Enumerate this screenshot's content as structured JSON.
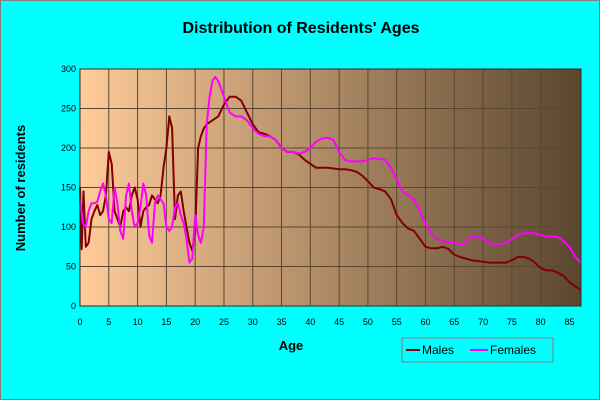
{
  "chart_data": {
    "type": "line",
    "title": "Distribution of Residents' Ages",
    "xlabel": "Age",
    "ylabel": "Number of residents",
    "xlim": [
      0,
      87
    ],
    "ylim": [
      0,
      300
    ],
    "x_ticks": [
      0,
      5,
      10,
      15,
      20,
      25,
      30,
      35,
      40,
      45,
      50,
      55,
      60,
      65,
      70,
      75,
      80,
      85
    ],
    "y_ticks": [
      0,
      50,
      100,
      150,
      200,
      250,
      300
    ],
    "grid": true,
    "legend_position": "bottom-right",
    "colors": {
      "page_background": "#00ffff",
      "plot_gradient_left": "#ffcc99",
      "plot_gradient_right": "#5a4630",
      "grid": "#5a4630"
    },
    "series": [
      {
        "name": "Males",
        "color": "#800000",
        "points": [
          [
            0,
            150
          ],
          [
            0.3,
            72
          ],
          [
            0.6,
            145
          ],
          [
            1,
            75
          ],
          [
            1.5,
            80
          ],
          [
            2,
            110
          ],
          [
            2.5,
            120
          ],
          [
            3,
            128
          ],
          [
            3.5,
            115
          ],
          [
            4,
            120
          ],
          [
            4.5,
            140
          ],
          [
            5,
            195
          ],
          [
            5.5,
            180
          ],
          [
            6,
            120
          ],
          [
            6.5,
            110
          ],
          [
            7,
            100
          ],
          [
            7.5,
            120
          ],
          [
            8,
            125
          ],
          [
            8.5,
            120
          ],
          [
            9,
            140
          ],
          [
            9.5,
            150
          ],
          [
            10,
            135
          ],
          [
            10.5,
            100
          ],
          [
            11,
            120
          ],
          [
            11.5,
            125
          ],
          [
            12,
            128
          ],
          [
            12.5,
            140
          ],
          [
            13,
            135
          ],
          [
            13.5,
            130
          ],
          [
            14,
            140
          ],
          [
            14.5,
            175
          ],
          [
            15,
            200
          ],
          [
            15.5,
            240
          ],
          [
            16,
            225
          ],
          [
            16.5,
            110
          ],
          [
            17,
            140
          ],
          [
            17.5,
            145
          ],
          [
            18,
            120
          ],
          [
            18.5,
            100
          ],
          [
            19,
            80
          ],
          [
            19.5,
            70
          ],
          [
            20,
            95
          ],
          [
            20.5,
            200
          ],
          [
            21,
            215
          ],
          [
            21.5,
            225
          ],
          [
            22,
            230
          ],
          [
            23,
            235
          ],
          [
            24,
            240
          ],
          [
            25,
            255
          ],
          [
            26,
            265
          ],
          [
            27,
            265
          ],
          [
            28,
            260
          ],
          [
            29,
            245
          ],
          [
            30,
            230
          ],
          [
            31,
            220
          ],
          [
            32,
            218
          ],
          [
            33,
            215
          ],
          [
            34,
            210
          ],
          [
            35,
            200
          ],
          [
            36,
            195
          ],
          [
            37,
            195
          ],
          [
            38,
            192
          ],
          [
            39,
            185
          ],
          [
            40,
            180
          ],
          [
            41,
            175
          ],
          [
            42,
            175
          ],
          [
            43,
            175
          ],
          [
            44,
            174
          ],
          [
            45,
            173
          ],
          [
            46,
            173
          ],
          [
            47,
            172
          ],
          [
            48,
            170
          ],
          [
            49,
            165
          ],
          [
            50,
            158
          ],
          [
            51,
            150
          ],
          [
            52,
            148
          ],
          [
            53,
            145
          ],
          [
            54,
            135
          ],
          [
            55,
            115
          ],
          [
            56,
            105
          ],
          [
            57,
            98
          ],
          [
            58,
            95
          ],
          [
            59,
            85
          ],
          [
            60,
            75
          ],
          [
            61,
            73
          ],
          [
            62,
            73
          ],
          [
            63,
            75
          ],
          [
            64,
            72
          ],
          [
            65,
            65
          ],
          [
            66,
            62
          ],
          [
            67,
            60
          ],
          [
            68,
            58
          ],
          [
            69,
            57
          ],
          [
            70,
            56
          ],
          [
            71,
            55
          ],
          [
            72,
            55
          ],
          [
            73,
            55
          ],
          [
            74,
            55
          ],
          [
            75,
            58
          ],
          [
            76,
            62
          ],
          [
            77,
            62
          ],
          [
            78,
            60
          ],
          [
            79,
            55
          ],
          [
            80,
            48
          ],
          [
            81,
            45
          ],
          [
            82,
            45
          ],
          [
            83,
            42
          ],
          [
            84,
            38
          ],
          [
            85,
            30
          ],
          [
            86,
            25
          ],
          [
            87,
            20
          ]
        ]
      },
      {
        "name": "Females",
        "color": "#ff00ff",
        "points": [
          [
            0,
            135
          ],
          [
            0.5,
            105
          ],
          [
            1,
            100
          ],
          [
            1.5,
            120
          ],
          [
            2,
            130
          ],
          [
            2.5,
            130
          ],
          [
            3,
            132
          ],
          [
            3.5,
            145
          ],
          [
            4,
            155
          ],
          [
            4.5,
            140
          ],
          [
            5,
            110
          ],
          [
            5.5,
            105
          ],
          [
            6,
            150
          ],
          [
            6.5,
            130
          ],
          [
            7,
            95
          ],
          [
            7.5,
            85
          ],
          [
            8,
            140
          ],
          [
            8.5,
            155
          ],
          [
            9,
            120
          ],
          [
            9.5,
            100
          ],
          [
            10,
            105
          ],
          [
            10.5,
            125
          ],
          [
            11,
            155
          ],
          [
            11.5,
            140
          ],
          [
            12,
            90
          ],
          [
            12.5,
            80
          ],
          [
            13,
            130
          ],
          [
            13.5,
            140
          ],
          [
            14,
            135
          ],
          [
            14.5,
            130
          ],
          [
            15,
            100
          ],
          [
            15.5,
            95
          ],
          [
            16,
            100
          ],
          [
            16.5,
            125
          ],
          [
            17,
            130
          ],
          [
            17.5,
            115
          ],
          [
            18,
            105
          ],
          [
            18.5,
            85
          ],
          [
            19,
            55
          ],
          [
            19.5,
            60
          ],
          [
            20,
            115
          ],
          [
            20.5,
            90
          ],
          [
            21,
            80
          ],
          [
            21.5,
            100
          ],
          [
            22,
            230
          ],
          [
            22.5,
            265
          ],
          [
            23,
            285
          ],
          [
            23.5,
            290
          ],
          [
            24,
            285
          ],
          [
            25,
            265
          ],
          [
            26,
            245
          ],
          [
            27,
            240
          ],
          [
            28,
            240
          ],
          [
            29,
            235
          ],
          [
            30,
            225
          ],
          [
            31,
            218
          ],
          [
            32,
            215
          ],
          [
            33,
            215
          ],
          [
            34,
            210
          ],
          [
            35,
            200
          ],
          [
            36,
            195
          ],
          [
            37,
            195
          ],
          [
            38,
            193
          ],
          [
            39,
            195
          ],
          [
            40,
            200
          ],
          [
            41,
            208
          ],
          [
            42,
            212
          ],
          [
            43,
            213
          ],
          [
            44,
            210
          ],
          [
            45,
            195
          ],
          [
            46,
            185
          ],
          [
            47,
            183
          ],
          [
            48,
            183
          ],
          [
            49,
            183
          ],
          [
            50,
            185
          ],
          [
            51,
            187
          ],
          [
            52,
            186
          ],
          [
            53,
            185
          ],
          [
            54,
            175
          ],
          [
            55,
            160
          ],
          [
            56,
            145
          ],
          [
            57,
            140
          ],
          [
            58,
            135
          ],
          [
            59,
            120
          ],
          [
            60,
            105
          ],
          [
            61,
            92
          ],
          [
            62,
            85
          ],
          [
            63,
            82
          ],
          [
            64,
            80
          ],
          [
            65,
            80
          ],
          [
            66,
            78
          ],
          [
            67,
            80
          ],
          [
            68,
            88
          ],
          [
            69,
            88
          ],
          [
            70,
            85
          ],
          [
            71,
            80
          ],
          [
            72,
            78
          ],
          [
            73,
            78
          ],
          [
            74,
            80
          ],
          [
            75,
            85
          ],
          [
            76,
            90
          ],
          [
            77,
            92
          ],
          [
            78,
            92
          ],
          [
            79,
            92
          ],
          [
            80,
            90
          ],
          [
            81,
            88
          ],
          [
            82,
            88
          ],
          [
            83,
            87
          ],
          [
            84,
            82
          ],
          [
            85,
            75
          ],
          [
            86,
            62
          ],
          [
            87,
            55
          ]
        ]
      }
    ]
  }
}
